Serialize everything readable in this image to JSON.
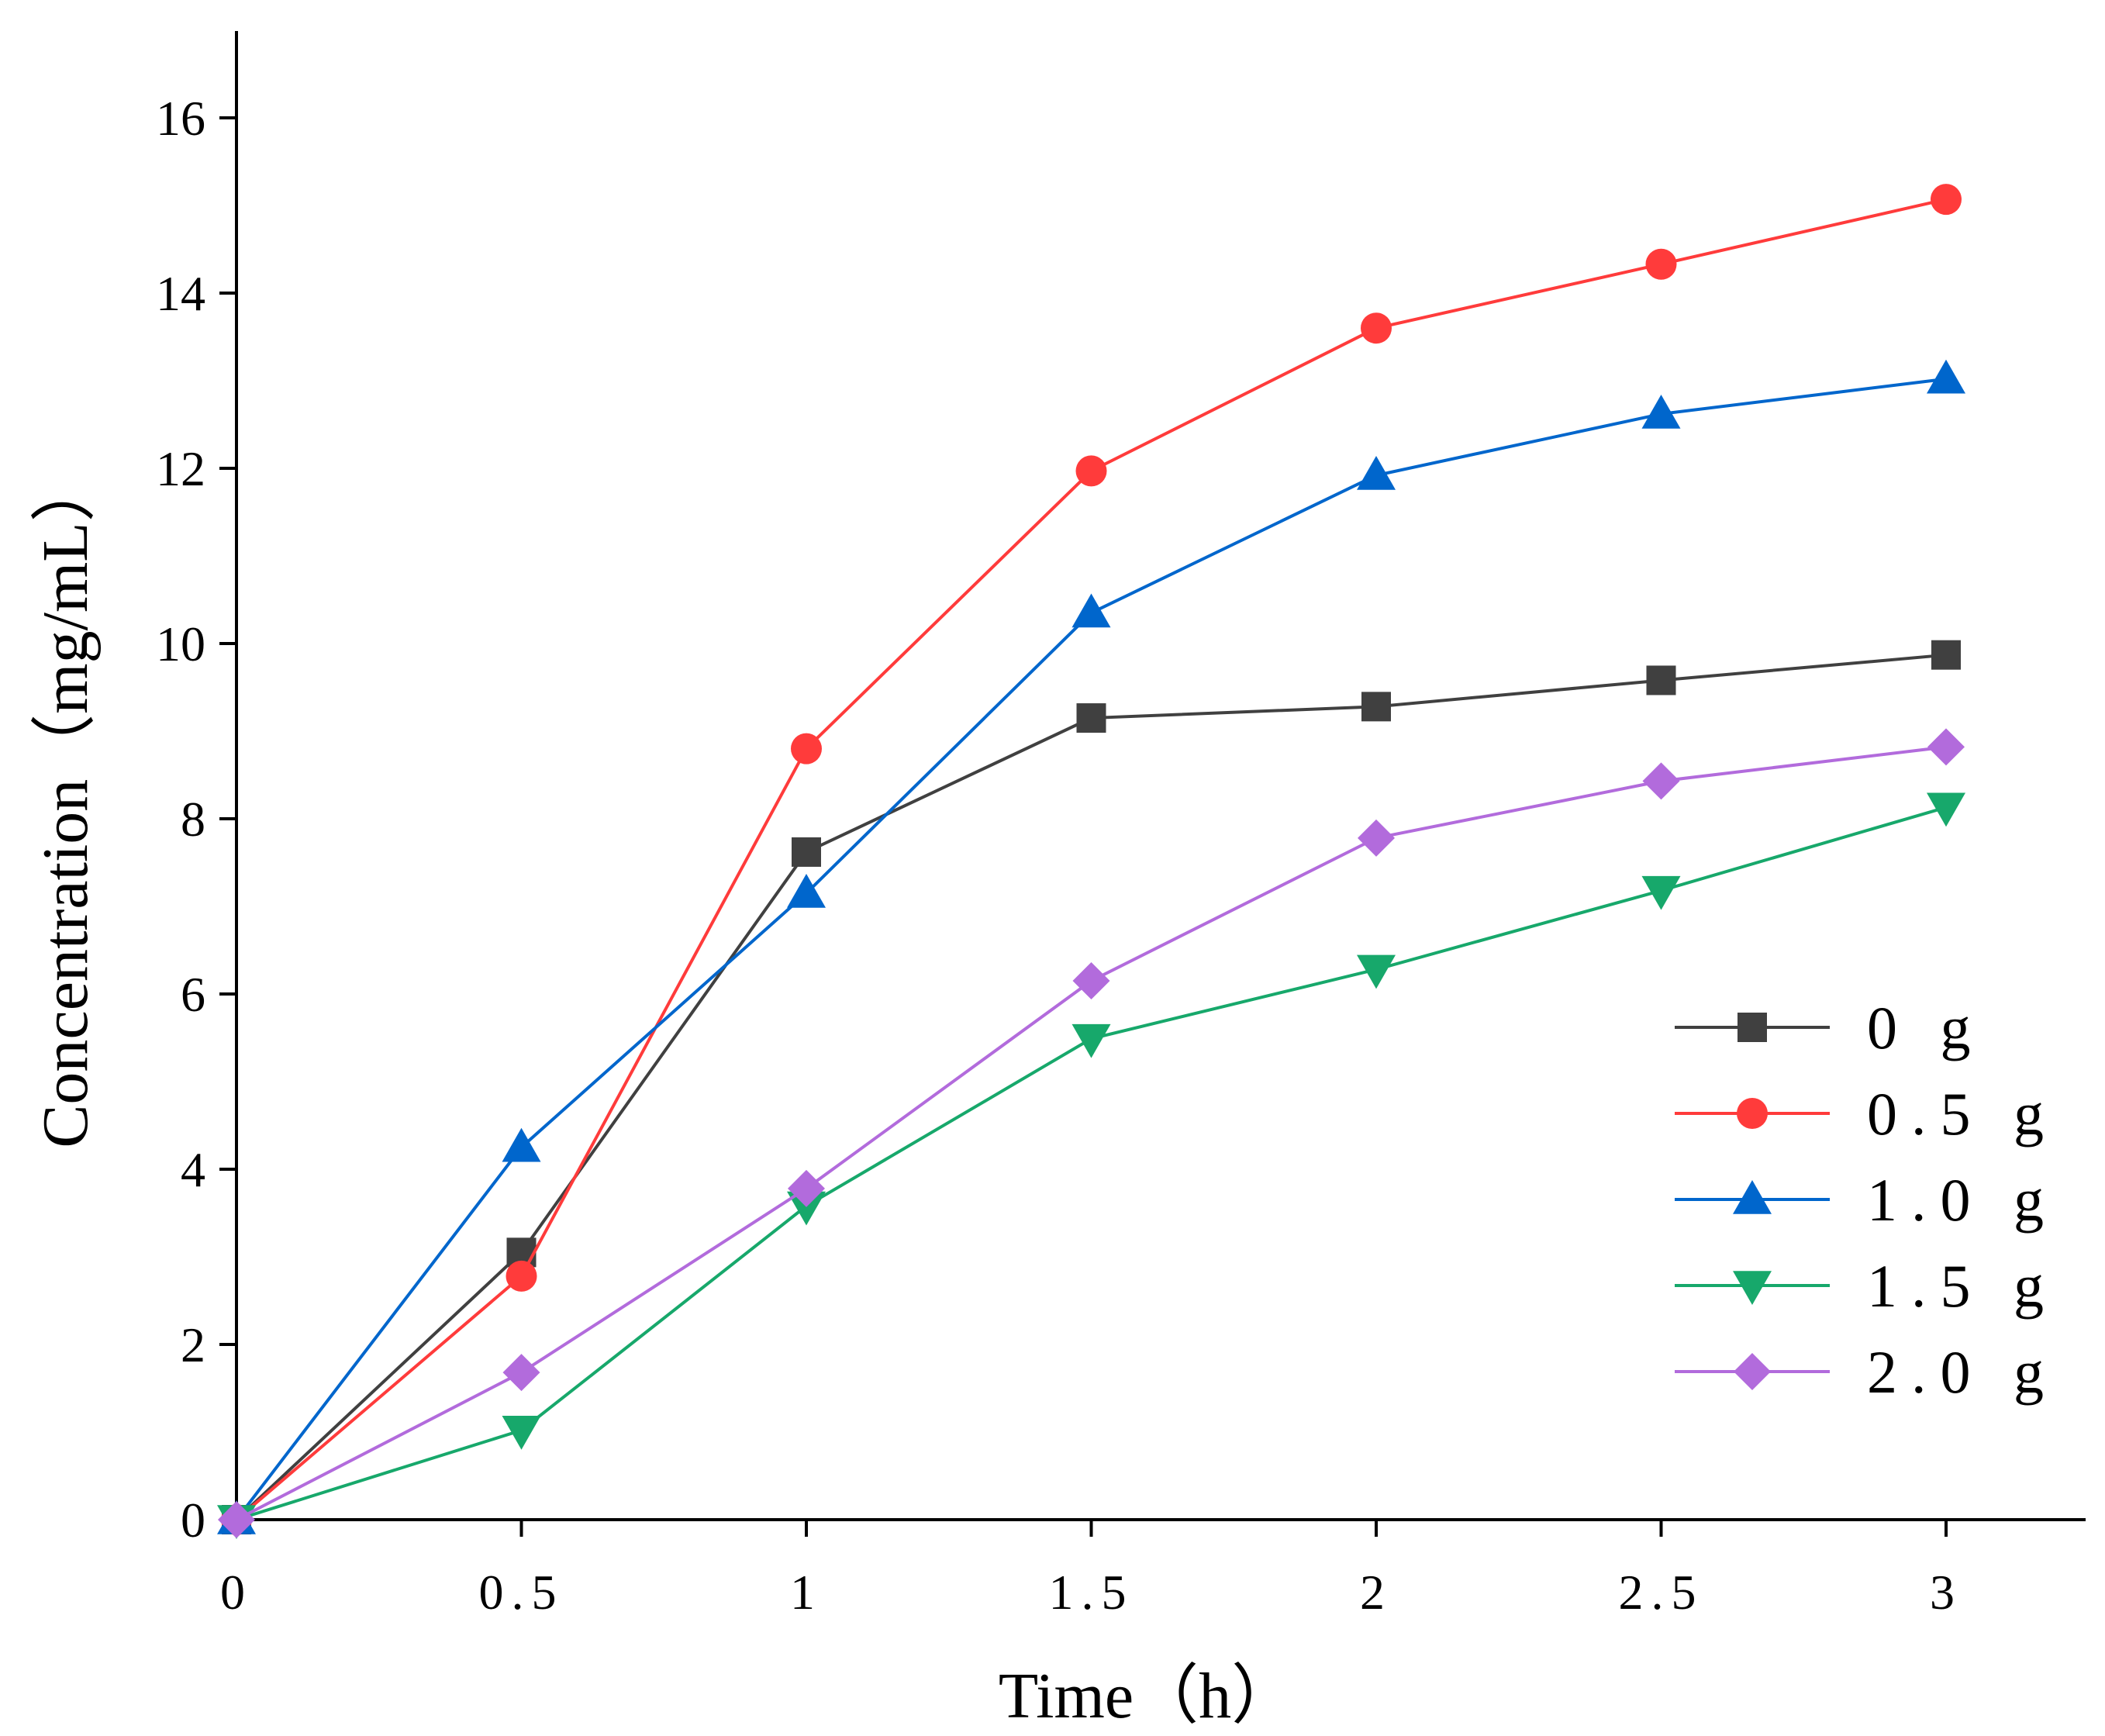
{
  "chart_data": {
    "type": "line",
    "title": "",
    "xlabel": "Time（h）",
    "ylabel": "Concentration（mg/mL）",
    "x": [
      0,
      0.5,
      1,
      1.5,
      2,
      2.5,
      3
    ],
    "x_tick_labels": [
      "0",
      "0.5",
      "1",
      "1.5",
      "2",
      "2.5",
      "3"
    ],
    "y_ticks": [
      0,
      2,
      4,
      6,
      8,
      10,
      12,
      14,
      16
    ],
    "y_tick_labels": [
      "0",
      "2",
      "4",
      "6",
      "8",
      "10",
      "12",
      "14",
      "16"
    ],
    "xlim": [
      0,
      3.25
    ],
    "ylim": [
      0,
      17
    ],
    "grid": false,
    "legend_position": "right",
    "series": [
      {
        "name": "0 g",
        "color": "#404040",
        "marker": "square",
        "values": [
          0,
          3.05,
          7.62,
          9.15,
          9.28,
          9.58,
          9.87
        ]
      },
      {
        "name": "0.5 g",
        "color": "#ff3b3b",
        "marker": "circle",
        "values": [
          0,
          2.78,
          8.8,
          11.97,
          13.6,
          14.33,
          15.07
        ]
      },
      {
        "name": "1.0 g",
        "color": "#0066cc",
        "marker": "triangle-up",
        "values": [
          0,
          4.25,
          7.15,
          10.35,
          11.92,
          12.62,
          13.02
        ]
      },
      {
        "name": "1.5 g",
        "color": "#17a86b",
        "marker": "triangle-down",
        "values": [
          0,
          1.02,
          3.58,
          5.49,
          6.28,
          7.18,
          8.13
        ]
      },
      {
        "name": "2.0 g",
        "color": "#b26bdc",
        "marker": "diamond",
        "values": [
          0,
          1.68,
          3.78,
          6.15,
          7.78,
          8.43,
          8.82
        ]
      }
    ]
  }
}
